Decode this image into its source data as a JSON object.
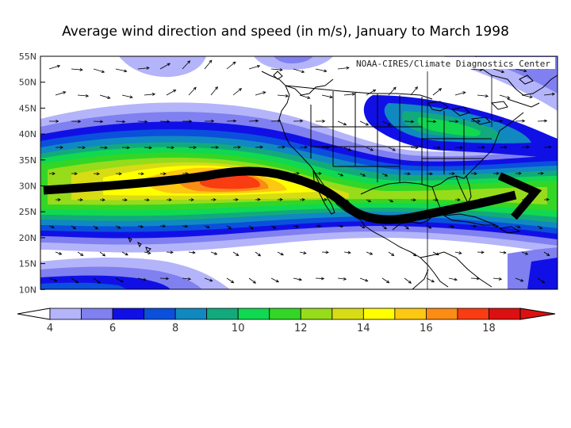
{
  "title": "Average wind direction and speed (in m/s), January to March 1998",
  "credit": "NOAA-CIRES/Climate Diagnostics Center",
  "latitude_labels": [
    "55N",
    "50N",
    "45N",
    "40N",
    "35N",
    "30N",
    "25N",
    "20N",
    "15N",
    "10N"
  ],
  "colorbar": {
    "labels": [
      "4",
      "6",
      "8",
      "10",
      "12",
      "14",
      "16",
      "18"
    ],
    "colors": [
      "#b4b4fa",
      "#8080f0",
      "#1010e6",
      "#0a50dc",
      "#1089c0",
      "#12aa7c",
      "#10d850",
      "#33d626",
      "#96dc1a",
      "#d8dc14",
      "#ffff00",
      "#fcc812",
      "#fb8c14",
      "#fa3c12",
      "#dc1010"
    ]
  },
  "jet_arrow": {
    "color": "#000000",
    "description_points": "west-to-east jet stream path"
  }
}
